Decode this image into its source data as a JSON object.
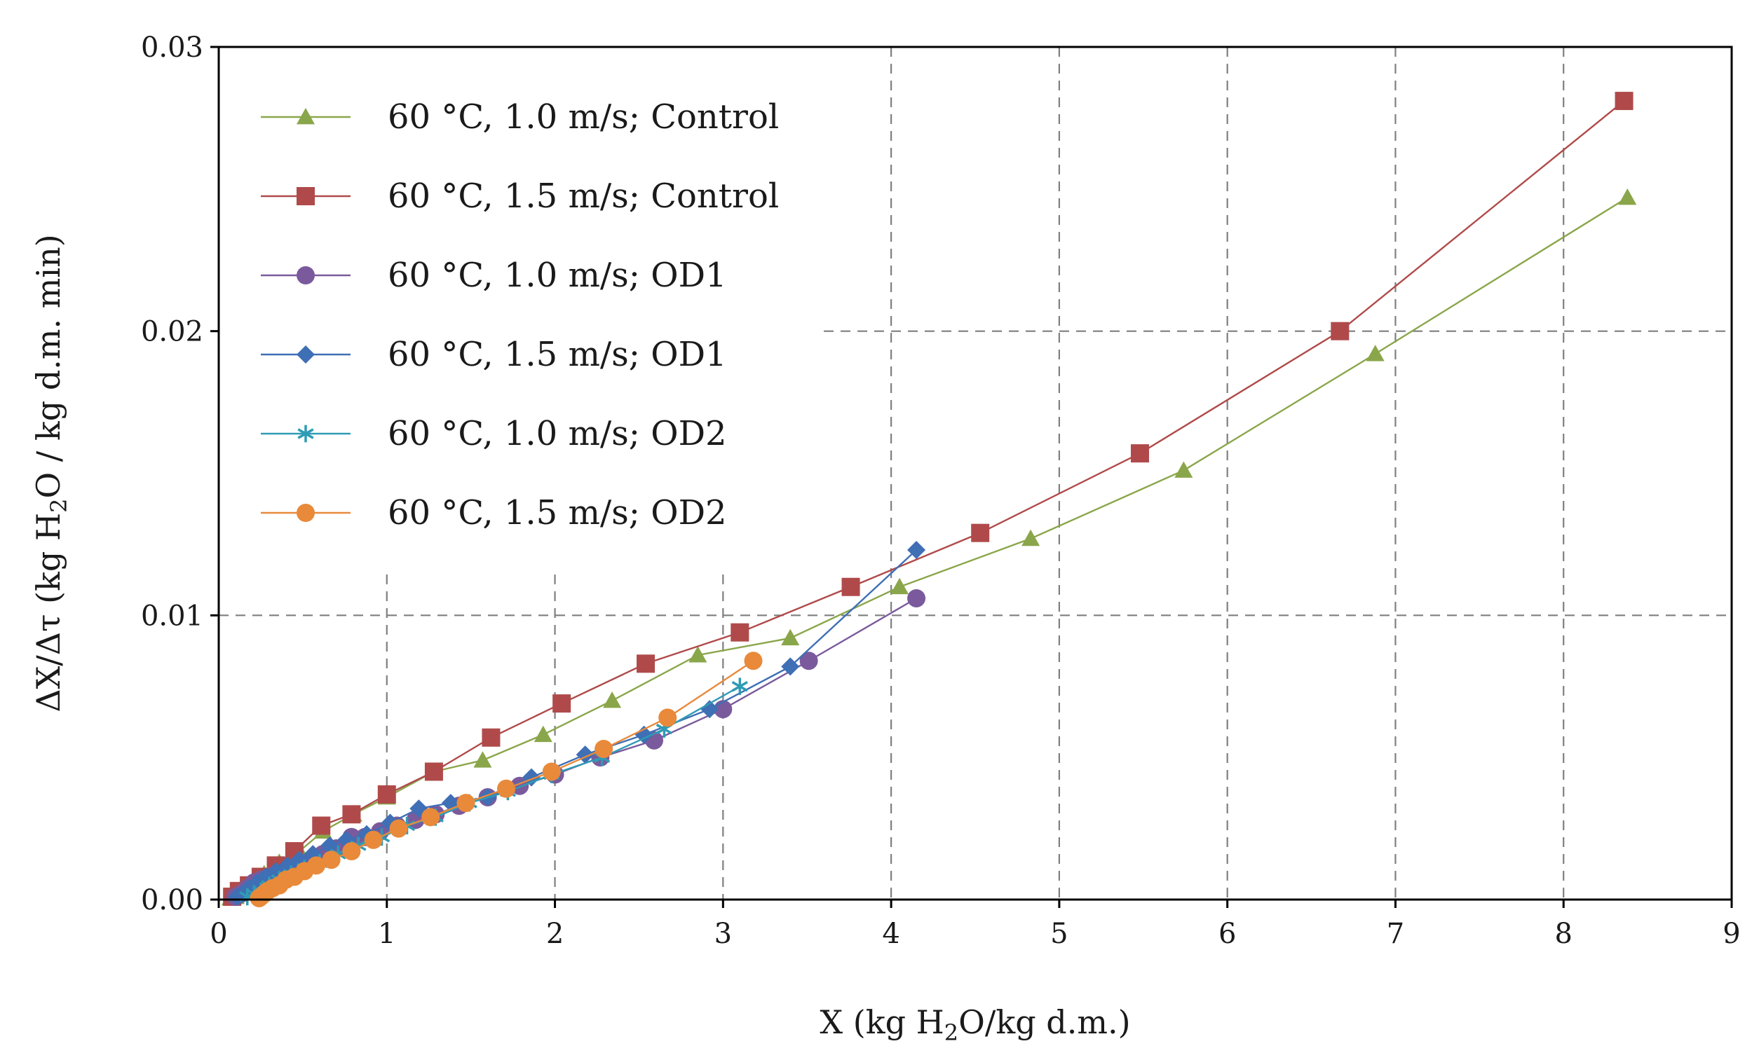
{
  "chart_data": {
    "type": "line",
    "xlabel_parts": [
      "X (kg H",
      "2",
      "O/kg d.m.)"
    ],
    "ylabel_parts": [
      "ΔX/Δτ  (kg H",
      "2",
      "O / kg d.m. min)"
    ],
    "xlim": [
      0,
      9
    ],
    "ylim": [
      0,
      0.03
    ],
    "x_ticks": [
      0,
      1,
      2,
      3,
      4,
      5,
      6,
      7,
      8,
      9
    ],
    "x_tick_labels": [
      "0",
      "1",
      "2",
      "3",
      "4",
      "5",
      "6",
      "7",
      "8",
      "9"
    ],
    "y_ticks": [
      0,
      0.01,
      0.02,
      0.03
    ],
    "y_tick_labels": [
      "0.00",
      "0.01",
      "0.02",
      "0.03"
    ],
    "grid": true,
    "legend_position": "top-left",
    "series": [
      {
        "name": "60 °C, 1.0 m/s; Control",
        "color": "#8aa64a",
        "marker": "triangle",
        "points": [
          [
            8.38,
            0.0247
          ],
          [
            6.88,
            0.0192
          ],
          [
            5.74,
            0.0151
          ],
          [
            4.83,
            0.0127
          ],
          [
            4.05,
            0.011
          ],
          [
            3.4,
            0.0092
          ],
          [
            2.85,
            0.0086
          ],
          [
            2.34,
            0.007
          ],
          [
            1.93,
            0.0058
          ],
          [
            1.57,
            0.0049
          ],
          [
            1.28,
            0.0045
          ],
          [
            1.0,
            0.0036
          ],
          [
            0.8,
            0.003
          ],
          [
            0.62,
            0.0024
          ],
          [
            0.48,
            0.0017
          ],
          [
            0.36,
            0.0013
          ],
          [
            0.27,
            0.0009
          ],
          [
            0.2,
            0.0006
          ],
          [
            0.15,
            0.0003
          ],
          [
            0.1,
            0.0001
          ],
          [
            0.07,
            5e-05
          ]
        ]
      },
      {
        "name": "60 °C, 1.5 m/s; Control",
        "color": "#b04a4a",
        "marker": "square",
        "points": [
          [
            8.36,
            0.0281
          ],
          [
            6.67,
            0.02
          ],
          [
            5.48,
            0.0157
          ],
          [
            4.53,
            0.0129
          ],
          [
            3.76,
            0.011
          ],
          [
            3.1,
            0.0094
          ],
          [
            2.54,
            0.0083
          ],
          [
            2.04,
            0.0069
          ],
          [
            1.62,
            0.0057
          ],
          [
            1.28,
            0.0045
          ],
          [
            1.0,
            0.0037
          ],
          [
            0.79,
            0.003
          ],
          [
            0.61,
            0.0026
          ],
          [
            0.45,
            0.0017
          ],
          [
            0.34,
            0.0012
          ],
          [
            0.25,
            0.0008
          ],
          [
            0.18,
            0.0005
          ],
          [
            0.12,
            0.0003
          ],
          [
            0.08,
            0.0001
          ]
        ]
      },
      {
        "name": "60 °C, 1.0 m/s; OD1",
        "color": "#7a5a9c",
        "marker": "circle",
        "points": [
          [
            4.15,
            0.0106
          ],
          [
            3.51,
            0.0084
          ],
          [
            3.0,
            0.0067
          ],
          [
            2.59,
            0.0056
          ],
          [
            2.27,
            0.005
          ],
          [
            2.0,
            0.0044
          ],
          [
            1.79,
            0.004
          ],
          [
            1.6,
            0.0036
          ],
          [
            1.43,
            0.0033
          ],
          [
            1.29,
            0.003
          ],
          [
            1.17,
            0.0028
          ],
          [
            1.06,
            0.0026
          ],
          [
            0.96,
            0.0024
          ],
          [
            0.87,
            0.0022
          ],
          [
            0.79,
            0.0022
          ],
          [
            0.7,
            0.0018
          ],
          [
            0.62,
            0.0016
          ],
          [
            0.55,
            0.0014
          ],
          [
            0.48,
            0.0012
          ],
          [
            0.42,
            0.001
          ],
          [
            0.36,
            0.0009
          ],
          [
            0.3,
            0.0008
          ],
          [
            0.25,
            0.0007
          ],
          [
            0.21,
            0.0006
          ],
          [
            0.17,
            0.0004
          ],
          [
            0.13,
            0.0002
          ],
          [
            0.1,
            0.0001
          ]
        ]
      },
      {
        "name": "60 °C, 1.5 m/s; OD1",
        "color": "#3f6fb5",
        "marker": "diamond",
        "points": [
          [
            4.15,
            0.0123
          ],
          [
            3.4,
            0.0082
          ],
          [
            2.92,
            0.0067
          ],
          [
            2.53,
            0.0058
          ],
          [
            2.18,
            0.0051
          ],
          [
            1.86,
            0.0043
          ],
          [
            1.6,
            0.0036
          ],
          [
            1.38,
            0.0034
          ],
          [
            1.19,
            0.0032
          ],
          [
            1.02,
            0.0027
          ],
          [
            0.88,
            0.0023
          ],
          [
            0.76,
            0.0021
          ],
          [
            0.66,
            0.0019
          ],
          [
            0.56,
            0.0016
          ],
          [
            0.48,
            0.0014
          ],
          [
            0.41,
            0.0012
          ],
          [
            0.34,
            0.001
          ],
          [
            0.28,
            0.0008
          ],
          [
            0.23,
            0.0006
          ],
          [
            0.18,
            0.0004
          ],
          [
            0.14,
            0.0002
          ],
          [
            0.11,
            0.0001
          ]
        ]
      },
      {
        "name": "60 °C, 1.0 m/s; OD2",
        "color": "#2f9bb5",
        "marker": "asterisk",
        "points": [
          [
            3.1,
            0.0075
          ],
          [
            2.65,
            0.006
          ],
          [
            2.28,
            0.005
          ],
          [
            1.98,
            0.0044
          ],
          [
            1.72,
            0.0038
          ],
          [
            1.49,
            0.0034
          ],
          [
            1.29,
            0.0029
          ],
          [
            1.12,
            0.0026
          ],
          [
            0.97,
            0.0022
          ],
          [
            0.83,
            0.0019
          ],
          [
            0.71,
            0.0016
          ],
          [
            0.6,
            0.0013
          ],
          [
            0.51,
            0.0011
          ],
          [
            0.43,
            0.0009
          ],
          [
            0.36,
            0.0007
          ],
          [
            0.3,
            0.0005
          ],
          [
            0.25,
            0.0003
          ],
          [
            0.21,
            0.0002
          ],
          [
            0.17,
            0.0001
          ]
        ]
      },
      {
        "name": "60 °C, 1.5 m/s; OD2",
        "color": "#e88a3a",
        "marker": "circle",
        "points": [
          [
            3.18,
            0.0084
          ],
          [
            2.67,
            0.0064
          ],
          [
            2.29,
            0.0053
          ],
          [
            1.98,
            0.0045
          ],
          [
            1.71,
            0.0039
          ],
          [
            1.47,
            0.0034
          ],
          [
            1.26,
            0.0029
          ],
          [
            1.07,
            0.0025
          ],
          [
            0.92,
            0.0021
          ],
          [
            0.79,
            0.0017
          ],
          [
            0.67,
            0.0014
          ],
          [
            0.58,
            0.0012
          ],
          [
            0.51,
            0.001
          ],
          [
            0.45,
            0.0008
          ],
          [
            0.4,
            0.0007
          ],
          [
            0.36,
            0.0005
          ],
          [
            0.32,
            0.0004
          ],
          [
            0.29,
            0.0003
          ],
          [
            0.27,
            0.0002
          ],
          [
            0.25,
            0.0001
          ],
          [
            0.24,
            5e-05
          ]
        ]
      }
    ]
  }
}
